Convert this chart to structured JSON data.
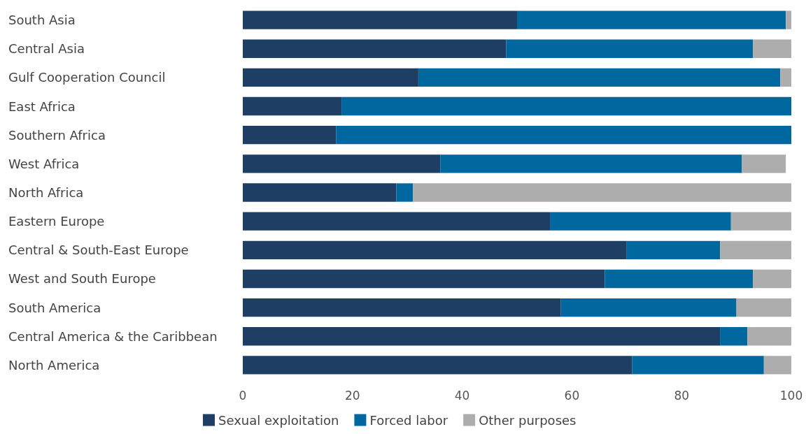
{
  "chart_data": {
    "type": "bar",
    "orientation": "horizontal",
    "stacked": true,
    "categories": [
      "South Asia",
      "Central Asia",
      "Gulf Cooperation Council",
      "East Africa",
      "Southern Africa",
      "West Africa",
      "North Africa",
      "Eastern Europe",
      "Central & South-East Europe",
      "West and South Europe",
      "South America",
      "Central America & the Caribbean",
      "North America"
    ],
    "series": [
      {
        "name": "Sexual exploitation",
        "color": "#1f3e63",
        "values": [
          50,
          48,
          32,
          18,
          17,
          36,
          28,
          56,
          70,
          66,
          58,
          87,
          71
        ]
      },
      {
        "name": "Forced labor",
        "color": "#00689f",
        "values": [
          49,
          45,
          66,
          82,
          83,
          55,
          3,
          33,
          17,
          27,
          32,
          5,
          24
        ]
      },
      {
        "name": "Other purposes",
        "color": "#adadad",
        "values": [
          1,
          7,
          2,
          0,
          0,
          8,
          69,
          11,
          13,
          7,
          10,
          8,
          5
        ]
      }
    ],
    "xlim": [
      0,
      100
    ],
    "xticks": [
      0,
      20,
      40,
      60,
      80,
      100
    ],
    "grid": false,
    "legend": "bottom"
  }
}
